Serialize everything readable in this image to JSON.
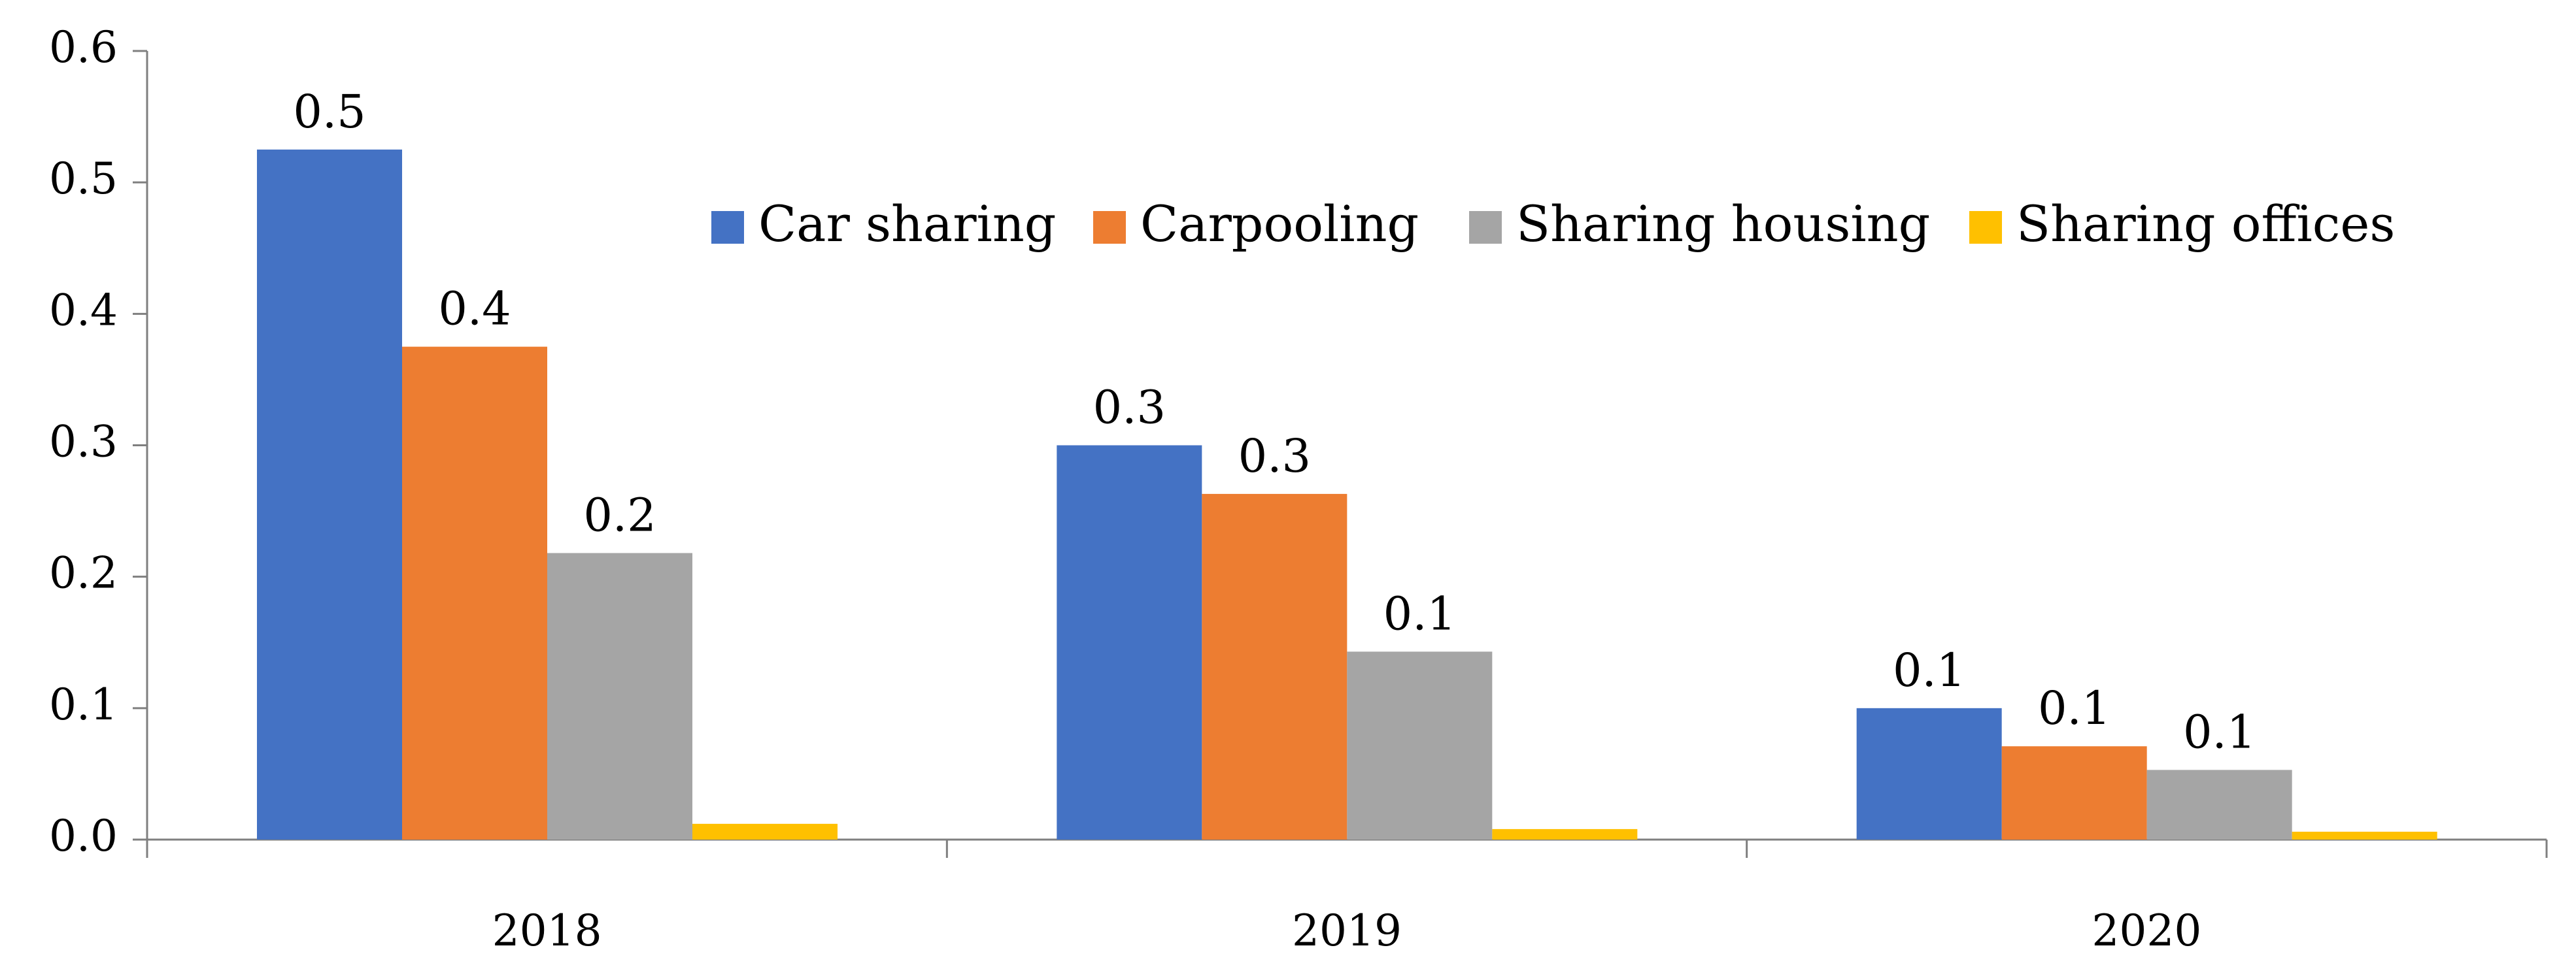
{
  "chart_data": {
    "type": "bar",
    "title": "",
    "xlabel": "",
    "ylabel": "",
    "categories": [
      "2018",
      "2019",
      "2020"
    ],
    "ylim": [
      0,
      0.6
    ],
    "yticks": [
      "0.0",
      "0.1",
      "0.2",
      "0.3",
      "0.4",
      "0.5",
      "0.6"
    ],
    "grid": false,
    "legend_position": "top-right",
    "series": [
      {
        "name": "Car sharing",
        "color": "#4472C4",
        "values": [
          0.525,
          0.3,
          0.1
        ],
        "labels": [
          "0.5",
          "0.3",
          "0.1"
        ]
      },
      {
        "name": "Carpooling",
        "color": "#ED7D31",
        "values": [
          0.375,
          0.263,
          0.071
        ],
        "labels": [
          "0.4",
          "0.3",
          "0.1"
        ]
      },
      {
        "name": "Sharing housing",
        "color": "#A5A5A5",
        "values": [
          0.218,
          0.143,
          0.053
        ],
        "labels": [
          "0.2",
          "0.1",
          "0.1"
        ]
      },
      {
        "name": "Sharing offices",
        "color": "#FFC000",
        "values": [
          0.012,
          0.008,
          0.006
        ],
        "labels": [
          "",
          "",
          ""
        ]
      }
    ]
  }
}
